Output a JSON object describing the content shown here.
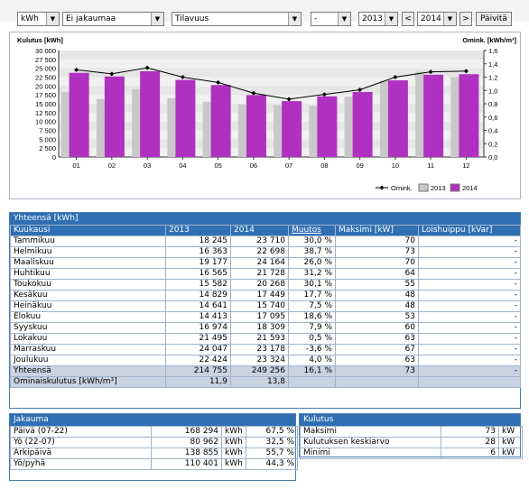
{
  "toolbar": {
    "unit_select": "kWh",
    "distribution_select": "Ei jakaumaa",
    "volume_select": "Tilavuus",
    "dash_select": "-",
    "year_select_1": "2013",
    "prev_label": "<",
    "year_select_2": "2014",
    "next_label": ">",
    "refresh_label": "Päivitä"
  },
  "chart_data": {
    "type": "bar",
    "categories": [
      "01",
      "02",
      "03",
      "04",
      "05",
      "06",
      "07",
      "08",
      "09",
      "10",
      "11",
      "12"
    ],
    "ylabel": "Kulutus [kWh]",
    "y2label": "Omink. [kWh/m³]",
    "ylim": [
      0,
      30000
    ],
    "y2lim": [
      0,
      1.6
    ],
    "y_ticks": [
      "0",
      "2 500",
      "5 000",
      "7 500",
      "10 000",
      "12 500",
      "15 000",
      "17 500",
      "20 000",
      "22 500",
      "25 000",
      "27 500",
      "30 000"
    ],
    "y2_ticks": [
      "0,0",
      "0,2",
      "0,4",
      "0,6",
      "0,8",
      "1,0",
      "1,2",
      "1,4",
      "1,6"
    ],
    "series": [
      {
        "name": "2013",
        "color": "#c8c8c8",
        "values": [
          18245,
          16363,
          19177,
          16565,
          15582,
          14829,
          14641,
          14413,
          16974,
          21495,
          24047,
          22424
        ]
      },
      {
        "name": "2014",
        "color": "#b030c0",
        "values": [
          23710,
          22698,
          24164,
          21728,
          20268,
          17449,
          15740,
          17095,
          18309,
          21593,
          23178,
          23324
        ]
      },
      {
        "name": "Omink.",
        "color": "#000000",
        "type": "line",
        "axis": "right",
        "values": [
          1.31,
          1.25,
          1.34,
          1.2,
          1.12,
          0.96,
          0.87,
          0.94,
          1.01,
          1.2,
          1.28,
          1.29
        ]
      }
    ],
    "legend_position": "bottom-right",
    "grid": true
  },
  "yearly": {
    "title": "Yhteensä [kWh]",
    "columns": [
      "Kuukausi",
      "2013",
      "2014",
      "Muutos",
      "Maksimi [kW]",
      "Loishuippu [kVar]"
    ],
    "rows": [
      [
        "Tammikuu",
        "18 245",
        "23 710",
        "30,0 %",
        "70",
        "-"
      ],
      [
        "Helmikuu",
        "16 363",
        "22 698",
        "38,7 %",
        "73",
        "-"
      ],
      [
        "Maaliskuu",
        "19 177",
        "24 164",
        "26,0 %",
        "70",
        "-"
      ],
      [
        "Huhtikuu",
        "16 565",
        "21 728",
        "31,2 %",
        "64",
        "-"
      ],
      [
        "Toukokuu",
        "15 582",
        "20 268",
        "30,1 %",
        "55",
        "-"
      ],
      [
        "Kesäkuu",
        "14 829",
        "17 449",
        "17,7 %",
        "48",
        "-"
      ],
      [
        "Heinäkuu",
        "14 641",
        "15 740",
        "7,5 %",
        "48",
        "-"
      ],
      [
        "Elokuu",
        "14 413",
        "17 095",
        "18,6 %",
        "53",
        "-"
      ],
      [
        "Syyskuu",
        "16 974",
        "18 309",
        "7,9 %",
        "60",
        "-"
      ],
      [
        "Lokakuu",
        "21 495",
        "21 593",
        "0,5 %",
        "63",
        "-"
      ],
      [
        "Marraskuu",
        "24 047",
        "23 178",
        "-3,6 %",
        "67",
        "-"
      ],
      [
        "Joulukuu",
        "22 424",
        "23 324",
        "4,0 %",
        "63",
        "-"
      ]
    ],
    "total": [
      "Yhteensä",
      "214 755",
      "249 256",
      "16,1 %",
      "73",
      "-"
    ],
    "specific": [
      "Ominaiskulutus [kWh/m³]",
      "11,9",
      "13,8"
    ]
  },
  "distribution": {
    "title": "Jakauma",
    "rows": [
      {
        "label": "Päivä (07-22)",
        "value": "168 294",
        "unit": "kWh",
        "pct": "67,5 %"
      },
      {
        "label": "Yö (22-07)",
        "value": "80 962",
        "unit": "kWh",
        "pct": "32,5 %"
      },
      {
        "label": "Arkipäivä",
        "value": "138 855",
        "unit": "kWh",
        "pct": "55,7 %"
      },
      {
        "label": "Yö/pyhä",
        "value": "110 401",
        "unit": "kWh",
        "pct": "44,3 %"
      }
    ]
  },
  "consumption": {
    "title": "Kulutus",
    "rows": [
      {
        "label": "Maksimi",
        "value": "73",
        "unit": "kW"
      },
      {
        "label": "Kulutuksen keskiarvo",
        "value": "28",
        "unit": "kW"
      },
      {
        "label": "Minimi",
        "value": "6",
        "unit": "kW"
      }
    ]
  }
}
